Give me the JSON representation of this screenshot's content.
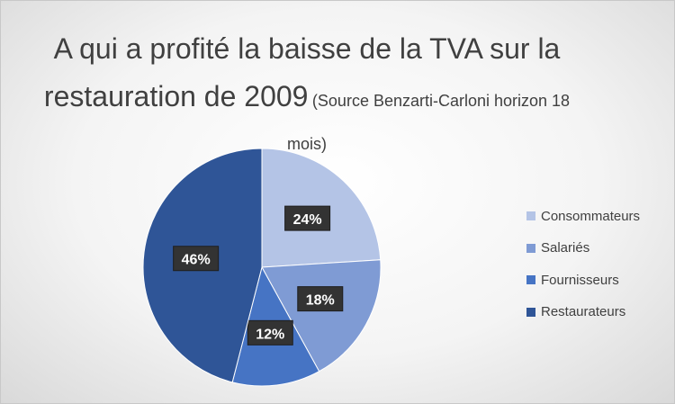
{
  "chart_data": {
    "type": "pie",
    "title": "A qui a profité la baisse de la TVA sur la restauration de 2009",
    "subtitle": "(Source Benzarti-Carloni horizon 18 mois)",
    "categories": [
      "Consommateurs",
      "Salariés",
      "Fournisseurs",
      "Restaurateurs"
    ],
    "values": [
      24,
      18,
      12,
      46
    ],
    "data_labels": [
      "24%",
      "18%",
      "12%",
      "46%"
    ],
    "colors": [
      "#b4c4e6",
      "#7f9bd4",
      "#4674c4",
      "#2f5597"
    ],
    "legend_position": "right"
  }
}
